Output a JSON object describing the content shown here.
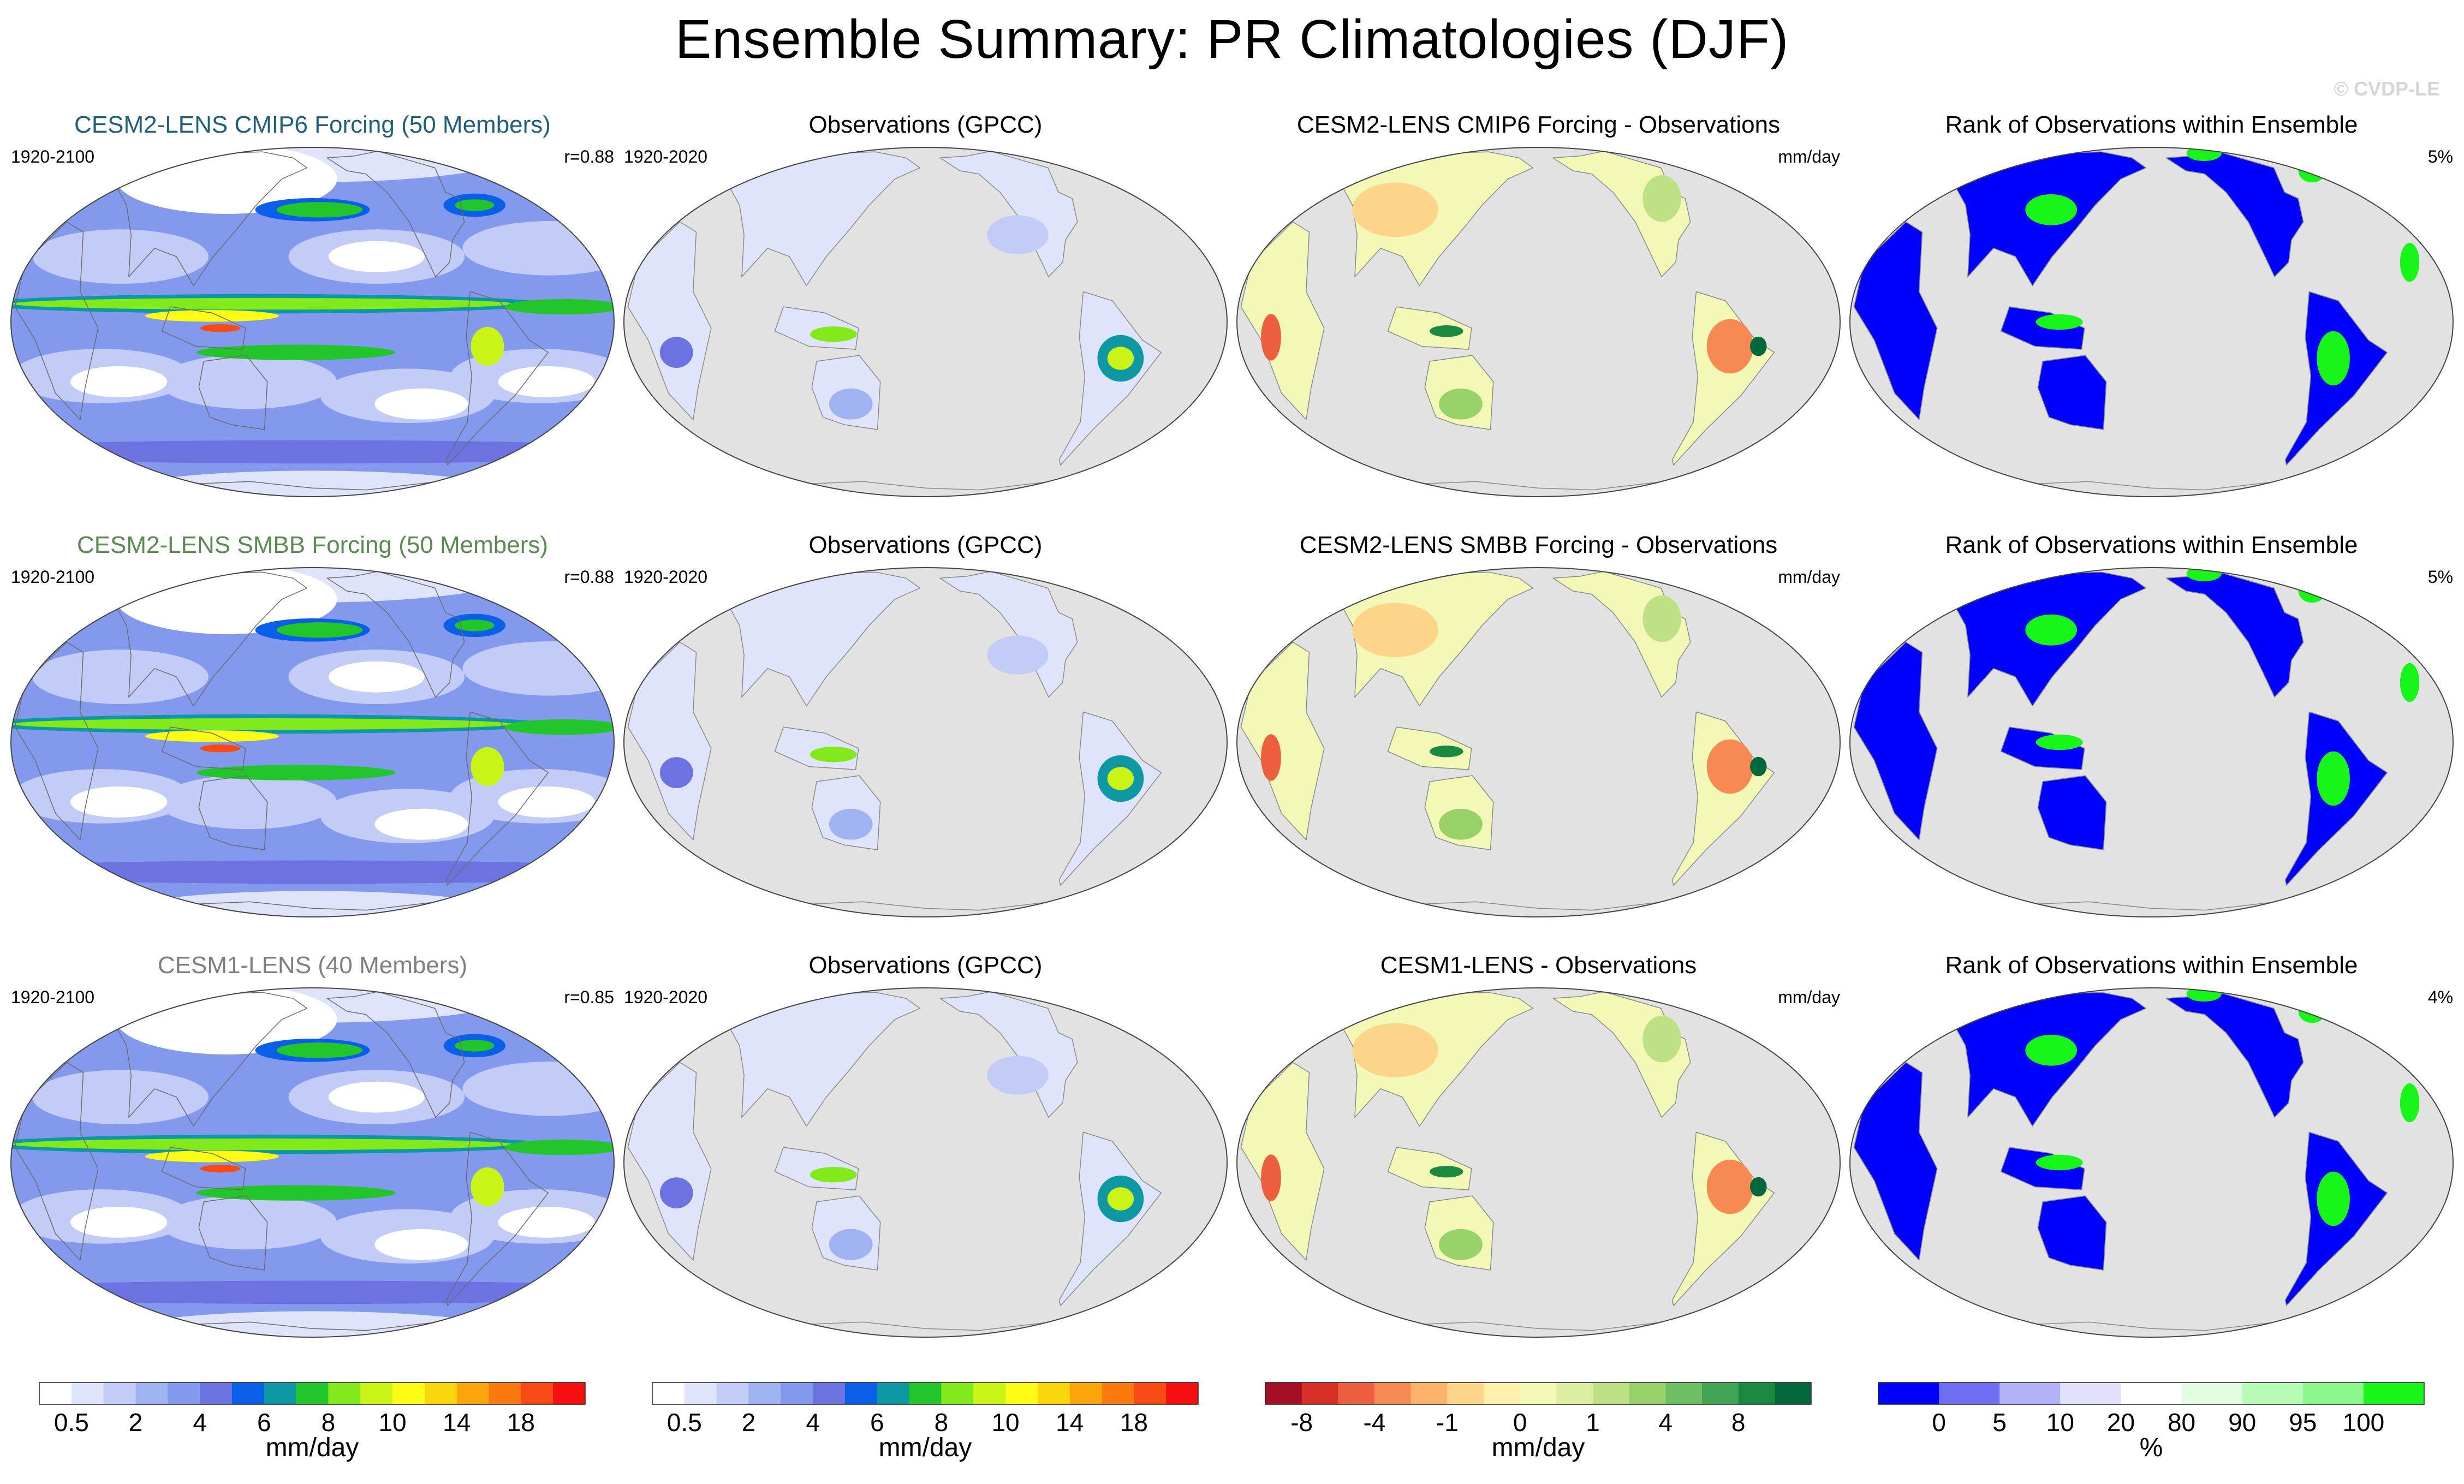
{
  "title": "Ensemble Summary: PR Climatologies (DJF)",
  "watermark": "© CVDP-LE",
  "palettes": {
    "precip": [
      "#ffffff",
      "#e0e4fb",
      "#c2ccf6",
      "#9fb3f2",
      "#8399ee",
      "#6c72e0",
      "#0a5fe8",
      "#0e98a4",
      "#22c62a",
      "#82ea1a",
      "#c9f416",
      "#fcfc14",
      "#fcd60c",
      "#faa60a",
      "#fa7a10",
      "#fa4a14",
      "#f50f0f"
    ],
    "diff": [
      "#a50f26",
      "#d73027",
      "#ec5e3e",
      "#f68a52",
      "#fbb36a",
      "#fcd48a",
      "#fcf0aa",
      "#f3f8b6",
      "#dcee9f",
      "#bde184",
      "#99d169",
      "#6dbd62",
      "#41a555",
      "#1a8a41",
      "#00683a"
    ],
    "rank": [
      "#0000ff",
      "#6e6ef5",
      "#b2b2f8",
      "#e1e1fc",
      "#ffffff",
      "#e3fde3",
      "#b6fbb6",
      "#8df98d",
      "#18f518"
    ]
  },
  "chart_data": [
    {
      "type": "heatmap",
      "panel": "model-climatology",
      "row": 1,
      "title": "CESM2-LENS CMIP6 Forcing (50 Members)",
      "title_color": "#1f5f7a",
      "left_label": "1920-2100",
      "right_label": "r=0.88",
      "colorbar": "precip",
      "max_mm_day": 20
    },
    {
      "type": "heatmap",
      "panel": "observations",
      "row": 1,
      "title": "Observations (GPCC)",
      "left_label": "1920-2020",
      "right_label": "",
      "colorbar": "precip",
      "max_mm_day": 16
    },
    {
      "type": "heatmap",
      "panel": "difference",
      "row": 1,
      "title": "CESM2-LENS CMIP6 Forcing - Observations",
      "left_label": "",
      "right_label": "mm/day",
      "colorbar": "diff",
      "range_mm_day": [
        -8,
        8
      ]
    },
    {
      "type": "heatmap",
      "panel": "rank",
      "row": 1,
      "title": "Rank of Observations within Ensemble",
      "left_label": "",
      "right_label": "5%",
      "colorbar": "rank"
    },
    {
      "type": "heatmap",
      "panel": "model-climatology",
      "row": 2,
      "title": "CESM2-LENS SMBB Forcing (50 Members)",
      "title_color": "#5b8a52",
      "left_label": "1920-2100",
      "right_label": "r=0.88",
      "colorbar": "precip",
      "max_mm_day": 20
    },
    {
      "type": "heatmap",
      "panel": "observations",
      "row": 2,
      "title": "Observations (GPCC)",
      "left_label": "1920-2020",
      "right_label": "",
      "colorbar": "precip",
      "max_mm_day": 16
    },
    {
      "type": "heatmap",
      "panel": "difference",
      "row": 2,
      "title": "CESM2-LENS SMBB Forcing - Observations",
      "left_label": "",
      "right_label": "mm/day",
      "colorbar": "diff",
      "range_mm_day": [
        -8,
        8
      ]
    },
    {
      "type": "heatmap",
      "panel": "rank",
      "row": 2,
      "title": "Rank of Observations within Ensemble",
      "left_label": "",
      "right_label": "5%",
      "colorbar": "rank"
    },
    {
      "type": "heatmap",
      "panel": "model-climatology",
      "row": 3,
      "title": "CESM1-LENS (40 Members)",
      "title_color": "#7f7f7f",
      "left_label": "1920-2100",
      "right_label": "r=0.85",
      "colorbar": "precip",
      "max_mm_day": 20
    },
    {
      "type": "heatmap",
      "panel": "observations",
      "row": 3,
      "title": "Observations (GPCC)",
      "left_label": "1920-2020",
      "right_label": "",
      "colorbar": "precip",
      "max_mm_day": 16
    },
    {
      "type": "heatmap",
      "panel": "difference",
      "row": 3,
      "title": "CESM1-LENS - Observations",
      "left_label": "",
      "right_label": "mm/day",
      "colorbar": "diff",
      "range_mm_day": [
        -8,
        8
      ]
    },
    {
      "type": "heatmap",
      "panel": "rank",
      "row": 3,
      "title": "Rank of Observations within Ensemble",
      "left_label": "",
      "right_label": "4%",
      "colorbar": "rank"
    }
  ],
  "colorbars": [
    {
      "id": "precip-1",
      "palette": "precip",
      "ticks": [
        "0.5",
        "2",
        "4",
        "6",
        "8",
        "10",
        "14",
        "18"
      ],
      "tick_boundaries": [
        1,
        3,
        5,
        7,
        9,
        11,
        13,
        15
      ],
      "unit": "mm/day"
    },
    {
      "id": "precip-2",
      "palette": "precip",
      "ticks": [
        "0.5",
        "2",
        "4",
        "6",
        "8",
        "10",
        "14",
        "18"
      ],
      "tick_boundaries": [
        1,
        3,
        5,
        7,
        9,
        11,
        13,
        15
      ],
      "unit": "mm/day"
    },
    {
      "id": "diff",
      "palette": "diff",
      "ticks": [
        "-8",
        "-4",
        "-1",
        "0",
        "1",
        "4",
        "8"
      ],
      "tick_boundaries": [
        1,
        3,
        5,
        7,
        9,
        11,
        13
      ],
      "unit": "mm/day"
    },
    {
      "id": "rank",
      "palette": "rank",
      "ticks": [
        "0",
        "5",
        "10",
        "20",
        "80",
        "90",
        "95",
        "100"
      ],
      "tick_boundaries": [
        1,
        2,
        3,
        4,
        5,
        6,
        7,
        8
      ],
      "unit": "%"
    }
  ]
}
